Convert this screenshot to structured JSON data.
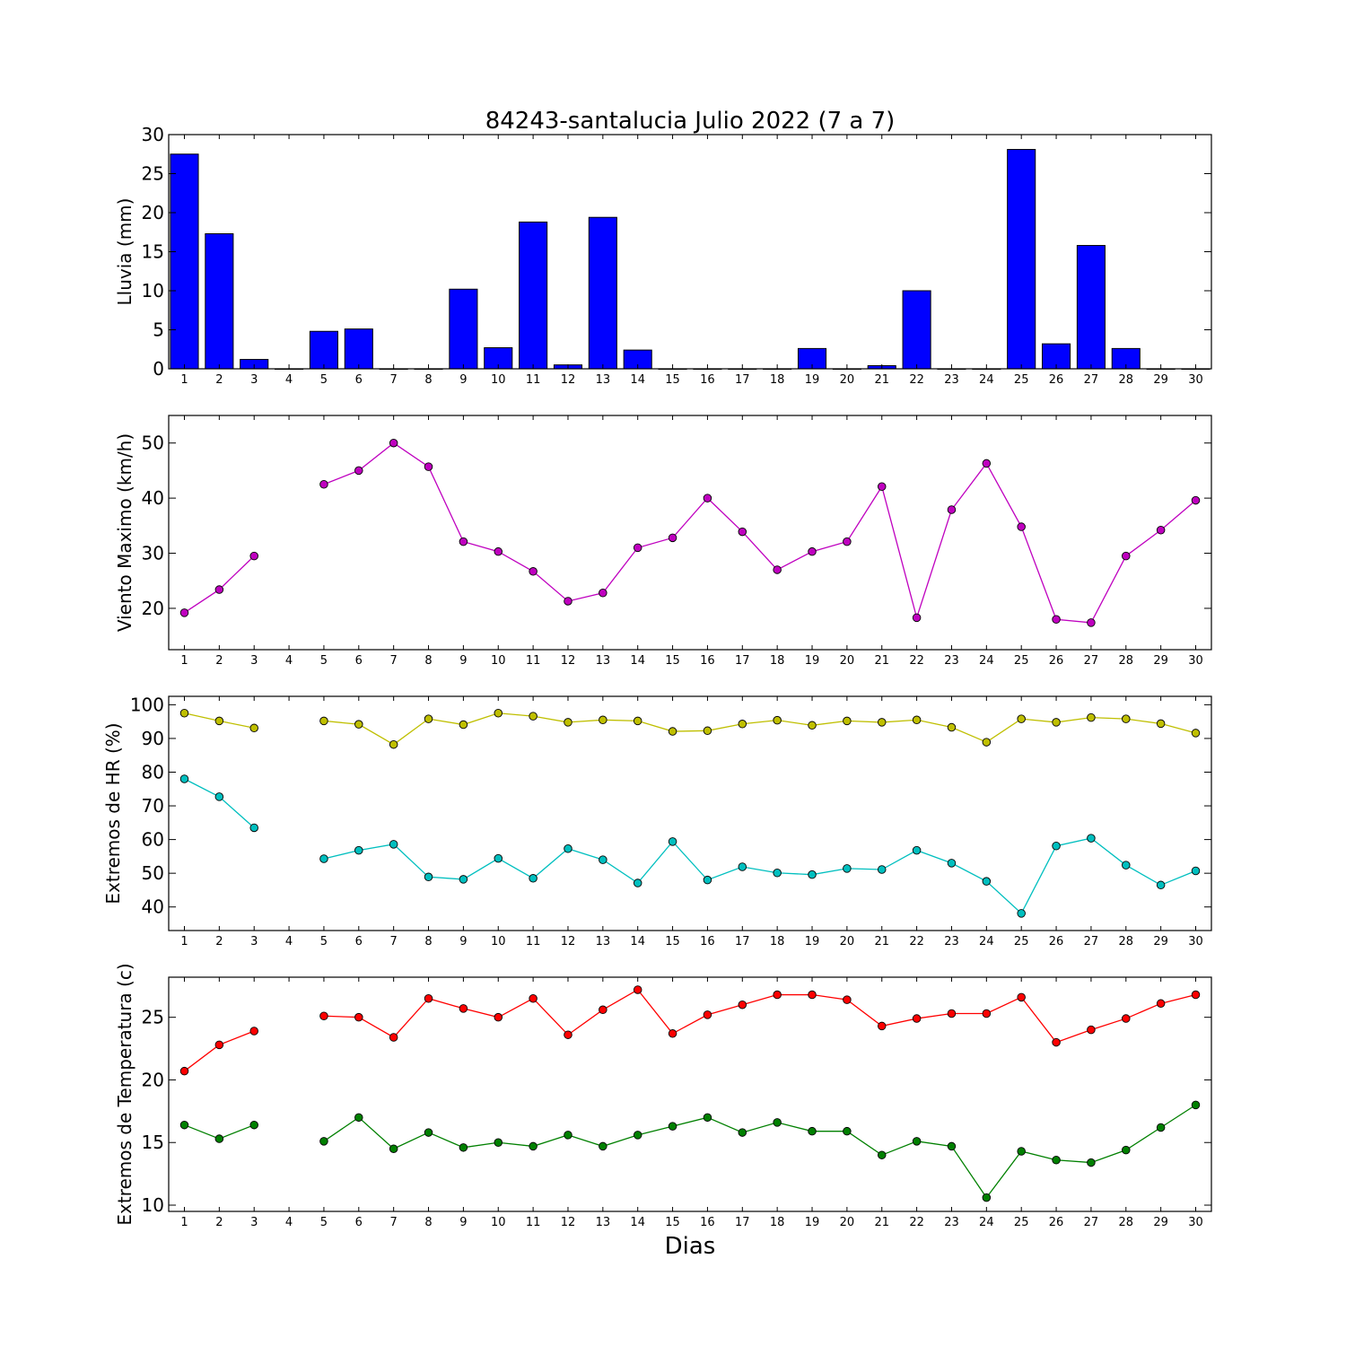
{
  "title": "84243-santalucia Julio 2022  (7 a 7)",
  "xlabel": "Dias",
  "chart_data": [
    {
      "type": "bar",
      "ylabel": "Lluvia (mm)",
      "ylim": [
        0,
        30
      ],
      "yticks": [
        0,
        5,
        10,
        15,
        20,
        25,
        30
      ],
      "x": [
        1,
        2,
        3,
        4,
        5,
        6,
        7,
        8,
        9,
        10,
        11,
        12,
        13,
        14,
        15,
        16,
        17,
        18,
        19,
        20,
        21,
        22,
        23,
        24,
        25,
        26,
        27,
        28,
        29,
        30
      ],
      "series": [
        {
          "color": "#0000ff",
          "values": [
            27.5,
            17.3,
            1.2,
            0,
            4.8,
            5.1,
            0,
            0,
            10.2,
            2.7,
            18.8,
            0.5,
            19.4,
            2.4,
            0,
            0,
            0,
            0,
            2.6,
            0,
            0.4,
            10.0,
            0,
            0,
            28.1,
            3.2,
            15.8,
            2.6,
            0,
            0
          ]
        }
      ]
    },
    {
      "type": "line",
      "ylabel": "Viento Maximo (km/h)",
      "ylim": [
        12.5,
        55
      ],
      "yticks": [
        20,
        30,
        40,
        50
      ],
      "x": [
        1,
        2,
        3,
        4,
        5,
        6,
        7,
        8,
        9,
        10,
        11,
        12,
        13,
        14,
        15,
        16,
        17,
        18,
        19,
        20,
        21,
        22,
        23,
        24,
        25,
        26,
        27,
        28,
        29,
        30
      ],
      "series": [
        {
          "color": "#bf00bf",
          "values": [
            19.2,
            23.4,
            29.5,
            null,
            42.5,
            45.0,
            50.0,
            45.7,
            32.1,
            30.3,
            26.7,
            21.3,
            22.8,
            31.0,
            32.8,
            40.0,
            33.9,
            27.0,
            30.3,
            32.1,
            42.1,
            18.3,
            37.9,
            46.3,
            34.8,
            18.0,
            17.4,
            29.5,
            34.2,
            39.6
          ]
        }
      ]
    },
    {
      "type": "line",
      "ylabel": "Extremos de HR (%)",
      "ylim": [
        33,
        102.5
      ],
      "yticks": [
        40,
        50,
        60,
        70,
        80,
        90,
        100
      ],
      "x": [
        1,
        2,
        3,
        4,
        5,
        6,
        7,
        8,
        9,
        10,
        11,
        12,
        13,
        14,
        15,
        16,
        17,
        18,
        19,
        20,
        21,
        22,
        23,
        24,
        25,
        26,
        27,
        28,
        29,
        30
      ],
      "series": [
        {
          "color": "#bfbf00",
          "values": [
            97.5,
            95.2,
            93.1,
            null,
            95.2,
            94.2,
            88.2,
            95.8,
            94.1,
            97.5,
            96.6,
            94.8,
            95.5,
            95.2,
            92.1,
            92.3,
            94.3,
            95.4,
            93.9,
            95.2,
            94.8,
            95.5,
            93.3,
            88.9,
            95.8,
            94.8,
            96.2,
            95.8,
            94.4,
            91.6
          ]
        },
        {
          "color": "#00bfbf",
          "values": [
            78.0,
            72.7,
            63.5,
            null,
            54.3,
            56.8,
            58.6,
            48.9,
            48.2,
            54.4,
            48.5,
            57.3,
            54.0,
            47.1,
            59.4,
            48.0,
            51.9,
            50.1,
            49.6,
            51.4,
            51.1,
            56.8,
            53.0,
            47.6,
            38.1,
            58.1,
            60.4,
            52.4,
            46.5,
            50.7
          ]
        }
      ]
    },
    {
      "type": "line",
      "ylabel": "Extremos de Temperatura (c)",
      "ylim": [
        9.5,
        28.2
      ],
      "yticks": [
        10,
        15,
        20,
        25
      ],
      "x": [
        1,
        2,
        3,
        4,
        5,
        6,
        7,
        8,
        9,
        10,
        11,
        12,
        13,
        14,
        15,
        16,
        17,
        18,
        19,
        20,
        21,
        22,
        23,
        24,
        25,
        26,
        27,
        28,
        29,
        30
      ],
      "series": [
        {
          "color": "#ff0000",
          "values": [
            20.7,
            22.8,
            23.9,
            null,
            25.1,
            25.0,
            23.4,
            26.5,
            25.7,
            25.0,
            26.5,
            23.6,
            25.6,
            27.2,
            23.7,
            25.2,
            26.0,
            26.8,
            26.8,
            26.4,
            24.3,
            24.9,
            25.3,
            25.3,
            26.6,
            23.0,
            24.0,
            24.9,
            26.1,
            26.8
          ]
        },
        {
          "color": "#008000",
          "values": [
            16.4,
            15.3,
            16.4,
            null,
            15.1,
            17.0,
            14.5,
            15.8,
            14.6,
            15.0,
            14.7,
            15.6,
            14.7,
            15.6,
            16.3,
            17.0,
            15.8,
            16.6,
            15.9,
            15.9,
            14.0,
            15.1,
            14.7,
            10.6,
            14.3,
            13.6,
            13.4,
            14.4,
            16.2,
            18.0
          ]
        }
      ]
    }
  ]
}
